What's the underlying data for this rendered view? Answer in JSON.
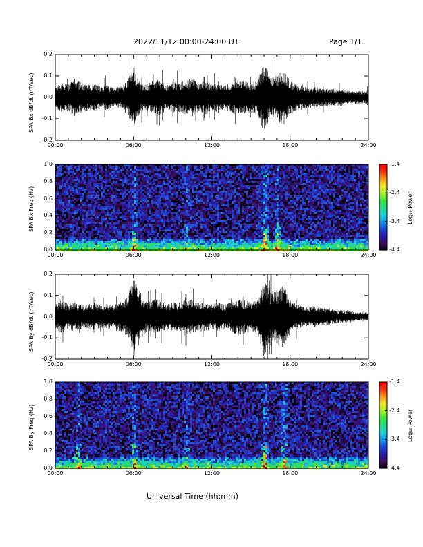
{
  "header": {
    "title": "2022/11/12  00:00-24:00 UT",
    "page": "Page 1/1"
  },
  "x_axis_title": "Universal Time (hh:mm)",
  "colors": {
    "trace": "#000000",
    "frame": "#000000",
    "colormap": [
      "#000000",
      "#3c0c5a",
      "#2a1ea8",
      "#1f48d6",
      "#1c8fe6",
      "#1fd0d8",
      "#24d884",
      "#39e13c",
      "#9eed2b",
      "#efe82a",
      "#f59a1e",
      "#f5381a",
      "#ff0000"
    ]
  },
  "chart_data": [
    {
      "id": "bx-time",
      "type": "line",
      "ylabel": "SPA Bx dB/dt (nT/sec)",
      "xlim": [
        0,
        24
      ],
      "ylim": [
        -0.2,
        0.2
      ],
      "xticks": [
        "00:00",
        "06:00",
        "12:00",
        "18:00",
        "24:00"
      ],
      "yticks": [
        "-0.2",
        "-0.1",
        "0.0",
        "0.1",
        "0.2"
      ],
      "series": [
        {
          "values": [
            {
              "x": 0.0,
              "amp": 0.05
            },
            {
              "x": 0.5,
              "amp": 0.07
            },
            {
              "x": 1.0,
              "amp": 0.06
            },
            {
              "x": 1.5,
              "amp": 0.09
            },
            {
              "x": 2.0,
              "amp": 0.07
            },
            {
              "x": 2.5,
              "amp": 0.06
            },
            {
              "x": 3.0,
              "amp": 0.07
            },
            {
              "x": 3.5,
              "amp": 0.05
            },
            {
              "x": 4.0,
              "amp": 0.06
            },
            {
              "x": 4.5,
              "amp": 0.05
            },
            {
              "x": 5.0,
              "amp": 0.05
            },
            {
              "x": 5.5,
              "amp": 0.08
            },
            {
              "x": 6.0,
              "amp": 0.16
            },
            {
              "x": 6.5,
              "amp": 0.07
            },
            {
              "x": 7.0,
              "amp": 0.06
            },
            {
              "x": 7.5,
              "amp": 0.08
            },
            {
              "x": 8.0,
              "amp": 0.09
            },
            {
              "x": 8.5,
              "amp": 0.06
            },
            {
              "x": 9.0,
              "amp": 0.07
            },
            {
              "x": 9.5,
              "amp": 0.07
            },
            {
              "x": 10.0,
              "amp": 0.08
            },
            {
              "x": 10.5,
              "amp": 0.09
            },
            {
              "x": 11.0,
              "amp": 0.07
            },
            {
              "x": 11.5,
              "amp": 0.08
            },
            {
              "x": 12.0,
              "amp": 0.06
            },
            {
              "x": 12.5,
              "amp": 0.07
            },
            {
              "x": 13.0,
              "amp": 0.06
            },
            {
              "x": 13.5,
              "amp": 0.07
            },
            {
              "x": 14.0,
              "amp": 0.08
            },
            {
              "x": 14.5,
              "amp": 0.08
            },
            {
              "x": 15.0,
              "amp": 0.07
            },
            {
              "x": 15.5,
              "amp": 0.08
            },
            {
              "x": 16.0,
              "amp": 0.17
            },
            {
              "x": 16.5,
              "amp": 0.09
            },
            {
              "x": 17.0,
              "amp": 0.11
            },
            {
              "x": 17.5,
              "amp": 0.13
            },
            {
              "x": 18.0,
              "amp": 0.08
            },
            {
              "x": 18.5,
              "amp": 0.06
            },
            {
              "x": 19.0,
              "amp": 0.06
            },
            {
              "x": 19.5,
              "amp": 0.05
            },
            {
              "x": 20.0,
              "amp": 0.05
            },
            {
              "x": 20.5,
              "amp": 0.04
            },
            {
              "x": 21.0,
              "amp": 0.04
            },
            {
              "x": 21.5,
              "amp": 0.04
            },
            {
              "x": 22.0,
              "amp": 0.04
            },
            {
              "x": 22.5,
              "amp": 0.03
            },
            {
              "x": 23.0,
              "amp": 0.03
            },
            {
              "x": 23.5,
              "amp": 0.03
            },
            {
              "x": 24.0,
              "amp": 0.03
            }
          ]
        }
      ]
    },
    {
      "id": "bx-spec",
      "type": "heatmap",
      "ylabel": "SPA Bx Freq (Hz)",
      "xlim": [
        0,
        24
      ],
      "ylim": [
        0.0,
        1.0
      ],
      "xticks": [
        "00:00",
        "06:00",
        "12:00",
        "18:00",
        "24:00"
      ],
      "yticks": [
        "0.0",
        "0.2",
        "0.4",
        "0.6",
        "0.8",
        "1.0"
      ],
      "colorbar": {
        "label": "Log₁₀ Power",
        "range": [
          -4.4,
          -1.4
        ],
        "ticks": [
          "-1.4",
          "-2.4",
          "-3.4",
          "-4.4"
        ]
      },
      "background_level": -4.0,
      "low_freq_level": -2.6,
      "events": [
        {
          "x": 6.0,
          "level": -2.4
        },
        {
          "x": 10.0,
          "level": -3.0
        },
        {
          "x": 16.0,
          "level": -1.6
        },
        {
          "x": 17.0,
          "level": -2.2
        }
      ]
    },
    {
      "id": "by-time",
      "type": "line",
      "ylabel": "SPA By dB/dt (nT/sec)",
      "xlim": [
        0,
        24
      ],
      "ylim": [
        -0.2,
        0.2
      ],
      "xticks": [
        "00:00",
        "06:00",
        "12:00",
        "18:00",
        "24:00"
      ],
      "yticks": [
        "-0.2",
        "-0.1",
        "0.0",
        "0.1",
        "0.2"
      ],
      "series": [
        {
          "values": [
            {
              "x": 0.0,
              "amp": 0.06
            },
            {
              "x": 0.5,
              "amp": 0.08
            },
            {
              "x": 1.0,
              "amp": 0.06
            },
            {
              "x": 1.5,
              "amp": 0.07
            },
            {
              "x": 2.0,
              "amp": 0.06
            },
            {
              "x": 2.5,
              "amp": 0.06
            },
            {
              "x": 3.0,
              "amp": 0.07
            },
            {
              "x": 3.5,
              "amp": 0.05
            },
            {
              "x": 4.0,
              "amp": 0.06
            },
            {
              "x": 4.5,
              "amp": 0.06
            },
            {
              "x": 5.0,
              "amp": 0.07
            },
            {
              "x": 5.5,
              "amp": 0.09
            },
            {
              "x": 6.0,
              "amp": 0.19
            },
            {
              "x": 6.5,
              "amp": 0.12
            },
            {
              "x": 7.0,
              "amp": 0.07
            },
            {
              "x": 7.5,
              "amp": 0.08
            },
            {
              "x": 8.0,
              "amp": 0.08
            },
            {
              "x": 8.5,
              "amp": 0.06
            },
            {
              "x": 9.0,
              "amp": 0.07
            },
            {
              "x": 9.5,
              "amp": 0.07
            },
            {
              "x": 10.0,
              "amp": 0.09
            },
            {
              "x": 10.5,
              "amp": 0.08
            },
            {
              "x": 11.0,
              "amp": 0.07
            },
            {
              "x": 11.5,
              "amp": 0.07
            },
            {
              "x": 12.0,
              "amp": 0.06
            },
            {
              "x": 12.5,
              "amp": 0.07
            },
            {
              "x": 13.0,
              "amp": 0.06
            },
            {
              "x": 13.5,
              "amp": 0.07
            },
            {
              "x": 14.0,
              "amp": 0.09
            },
            {
              "x": 14.5,
              "amp": 0.08
            },
            {
              "x": 15.0,
              "amp": 0.07
            },
            {
              "x": 15.5,
              "amp": 0.08
            },
            {
              "x": 16.0,
              "amp": 0.19
            },
            {
              "x": 16.5,
              "amp": 0.12
            },
            {
              "x": 17.0,
              "amp": 0.13
            },
            {
              "x": 17.5,
              "amp": 0.15
            },
            {
              "x": 18.0,
              "amp": 0.08
            },
            {
              "x": 18.5,
              "amp": 0.06
            },
            {
              "x": 19.0,
              "amp": 0.05
            },
            {
              "x": 19.5,
              "amp": 0.05
            },
            {
              "x": 20.0,
              "amp": 0.05
            },
            {
              "x": 20.5,
              "amp": 0.04
            },
            {
              "x": 21.0,
              "amp": 0.04
            },
            {
              "x": 21.5,
              "amp": 0.03
            },
            {
              "x": 22.0,
              "amp": 0.03
            },
            {
              "x": 22.5,
              "amp": 0.03
            },
            {
              "x": 23.0,
              "amp": 0.02
            },
            {
              "x": 23.5,
              "amp": 0.02
            },
            {
              "x": 24.0,
              "amp": 0.02
            }
          ]
        }
      ]
    },
    {
      "id": "by-spec",
      "type": "heatmap",
      "ylabel": "SPA By Freq (Hz)",
      "xlim": [
        0,
        24
      ],
      "ylim": [
        0.0,
        1.0
      ],
      "xticks": [
        "00:00",
        "06:00",
        "12:00",
        "18:00",
        "24:00"
      ],
      "yticks": [
        "0.0",
        "0.2",
        "0.4",
        "0.6",
        "0.8",
        "1.0"
      ],
      "colorbar": {
        "label": "Log₁₀ Power",
        "range": [
          -4.4,
          -1.4
        ],
        "ticks": [
          "-1.4",
          "-2.4",
          "-3.4",
          "-4.4"
        ]
      },
      "background_level": -4.0,
      "low_freq_level": -2.6,
      "events": [
        {
          "x": 1.7,
          "level": -2.4
        },
        {
          "x": 6.0,
          "level": -2.4
        },
        {
          "x": 10.0,
          "level": -3.0
        },
        {
          "x": 16.0,
          "level": -1.6
        },
        {
          "x": 17.5,
          "level": -2.0
        }
      ]
    }
  ]
}
